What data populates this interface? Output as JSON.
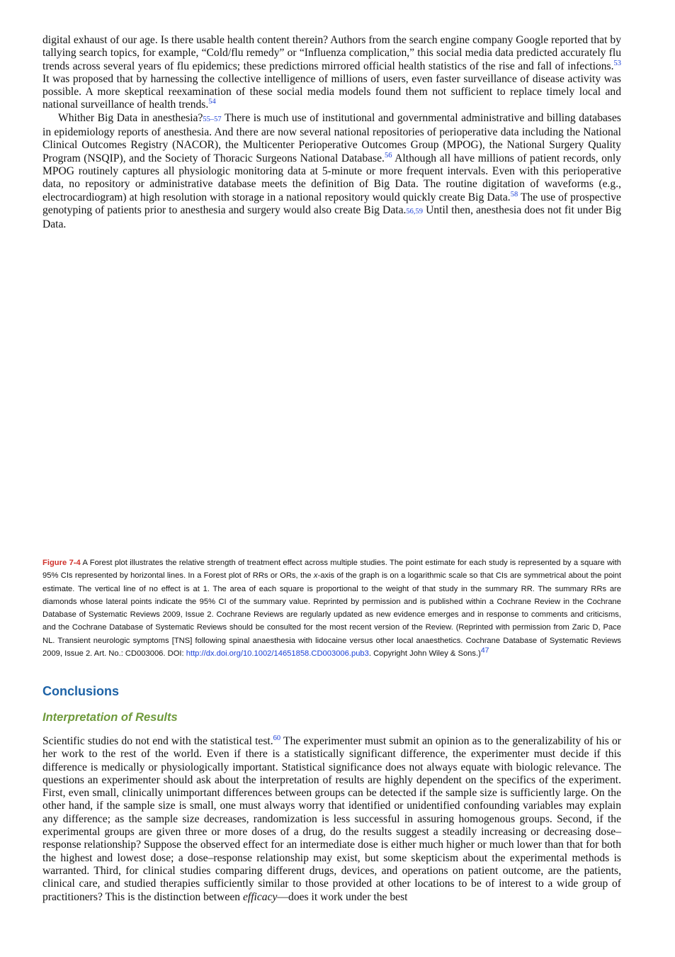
{
  "top_paragraphs": [
    [
      {
        "text": "digital exhaust of our age. Is there usable health content therein? Authors from the search engine company Google reported that by tallying search topics, for example, “Cold/flu remedy” or “Influenza complication,” this social media data predicted accurately flu trends across several years of flu epidemics; these predictions mirrored official health statistics of the rise and fall of infections."
      },
      {
        "sup": "53"
      },
      {
        "text": " It was proposed that by harnessing the collective intelligence of millions of users, even faster surveillance of disease activity was possible. A more skeptical reexamination of these social media models found them not sufficient to replace timely local and national surveillance of health trends."
      },
      {
        "sup": "54"
      }
    ],
    [
      {
        "text": "Whither Big Data in anesthesia?"
      },
      {
        "ref": "55–57"
      },
      {
        "text": " There is much use of institutional and governmental administrative and billing databases in epidemiology reports of anesthesia. And there are now several national repositories of perioperative data including the National Clinical Outcomes Registry (NACOR), the Multicenter Perioperative Outcomes Group (MPOG), the National Surgery Quality Program (NSQIP), and the Society of Thoracic Surgeons National Database."
      },
      {
        "sup": "56"
      },
      {
        "text": " Although all have millions of patient records, only MPOG routinely captures all physiologic monitoring data at 5-minute or more frequent intervals. Even with this perioperative data, no repository or administrative database meets the definition of Big Data. The routine digitation of waveforms (e.g., electrocardiogram) at high resolution with storage in a national repository would quickly create Big Data."
      },
      {
        "sup": "58"
      },
      {
        "text": " The use of prospective genotyping of patients prior to anesthesia and surgery would also create Big Data."
      },
      {
        "ref": "56,59"
      },
      {
        "text": " Until then, anesthesia does not fit under Big Data."
      }
    ]
  ],
  "caption": [
    {
      "label": "Figure 7-4"
    },
    {
      "text": " A Forest plot illustrates the relative strength of treatment effect across multiple studies. The point estimate for each study is represented by a square with 95% CIs represented by horizontal lines. In a Forest plot of RRs or ORs, the "
    },
    {
      "em": "x"
    },
    {
      "text": "-axis of the graph is on a logarithmic scale so that CIs are symmetrical about the point estimate. The vertical line of no effect is at 1. The area of each square is proportional to the weight of that study in the summary RR. The summary RRs are diamonds whose lateral points indicate the 95% CI of the summary value. Reprinted by permission and is published within a Cochrane Review in the Cochrane Database of Systematic Reviews 2009, Issue 2. Cochrane Reviews are regularly updated as new evidence emerges and in response to comments and criticisms, and the Cochrane Database of Systematic Reviews should be consulted for the most recent version of the Review. (Reprinted with permission from Zaric D, Pace NL. Transient neurologic symptoms [TNS] following spinal anaesthesia with lidocaine versus other local anaesthetics. Cochrane Database of Systematic Reviews 2009, Issue 2. Art. No.: CD003006. DOI: "
    },
    {
      "link": "http://dx.doi.org/10.1002/14651858.CD003006.pub3"
    },
    {
      "text": ". Copyright John Wiley & Sons.)"
    },
    {
      "sup": "47"
    }
  ],
  "heading": "Conclusions",
  "subheading": "Interpretation of Results",
  "bottom_paragraphs": [
    [
      {
        "text": "Scientific studies do not end with the statistical test."
      },
      {
        "sup": "60"
      },
      {
        "text": " The experimenter must submit an opinion as to the generalizability of his or her work to the rest of the world. Even if there is a statistically significant difference, the experimenter must decide if this difference is medically or physiologically important. Statistical significance does not always equate with biologic relevance. The questions an experimenter should ask about the interpretation of results are highly dependent on the specifics of the experiment. First, even small, clinically unimportant differences between groups can be detected if the sample size is sufficiently large. On the other hand, if the sample size is small, one must always worry that identified or unidentified confounding variables may explain any difference; as the sample size decreases, randomization is less successful in assuring homogenous groups. Second, if the experimental groups are given three or more doses of a drug, do the results suggest a steadily increasing or decreasing dose–response relationship? Suppose the observed effect for an intermediate dose is either much higher or much lower than that for both the highest and lowest dose; a dose–response relationship may exist, but some skepticism about the experimental methods is warranted. Third, for clinical studies comparing different drugs, devices, and operations on patient outcome, are the patients, clinical care, and studied therapies sufficiently similar to those provided at other locations to be of interest to a wide group of practitioners? This is the distinction between "
      },
      {
        "em": "efficacy"
      },
      {
        "text": "—does it work under the best"
      }
    ]
  ]
}
